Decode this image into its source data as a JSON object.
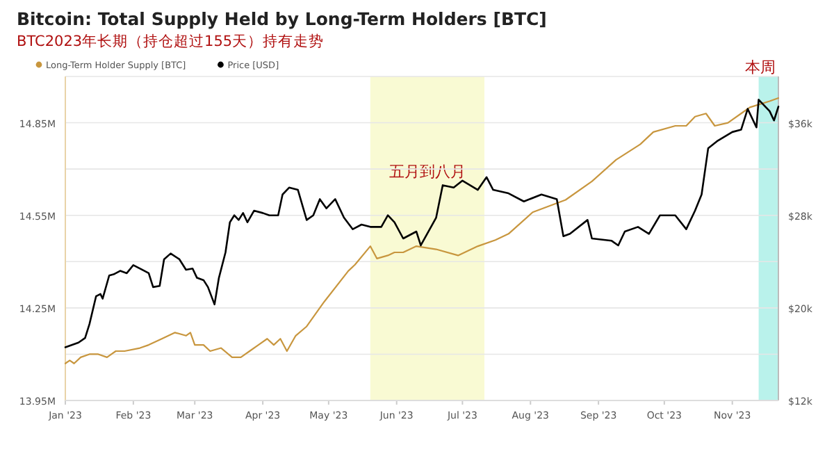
{
  "chart_data": {
    "type": "line",
    "title": "Bitcoin: Total Supply Held by Long-Term Holders [BTC]",
    "subtitle": "BTC2023年长期（持仓超过155天）持有走势",
    "legend": "top left",
    "grid": "y",
    "marker": "none",
    "line_style": "solid",
    "xlim": [
      "2023-01-01",
      "2023-11-22"
    ],
    "xticks": [
      {
        "value": "2023-01-01",
        "label": "Jan '23"
      },
      {
        "value": "2023-02-01",
        "label": "Feb '23"
      },
      {
        "value": "2023-03-01",
        "label": "Mar '23"
      },
      {
        "value": "2023-04-01",
        "label": "Apr '23"
      },
      {
        "value": "2023-05-01",
        "label": "May '23"
      },
      {
        "value": "2023-06-01",
        "label": "Jun '23"
      },
      {
        "value": "2023-07-01",
        "label": "Jul '23"
      },
      {
        "value": "2023-08-01",
        "label": "Aug '23"
      },
      {
        "value": "2023-09-01",
        "label": "Sep '23"
      },
      {
        "value": "2023-10-01",
        "label": "Oct '23"
      },
      {
        "value": "2023-11-01",
        "label": "Nov '23"
      }
    ],
    "ylim": [
      13.95,
      15.0
    ],
    "yticks": [
      {
        "value": 13.95,
        "label": "13.95M"
      },
      {
        "value": 14.1,
        "label": null
      },
      {
        "value": 14.25,
        "label": "14.25M"
      },
      {
        "value": 14.4,
        "label": null
      },
      {
        "value": 14.55,
        "label": "14.55M"
      },
      {
        "value": 14.7,
        "label": null
      },
      {
        "value": 14.85,
        "label": "14.85M"
      },
      {
        "value": 15.0,
        "label": null
      }
    ],
    "y2lim": [
      12,
      40
    ],
    "y2ticks": [
      {
        "value": 12,
        "label": "$12k"
      },
      {
        "value": 20,
        "label": "$20k"
      },
      {
        "value": 28,
        "label": "$28k"
      },
      {
        "value": 36,
        "label": "$36k"
      }
    ],
    "bands": [
      {
        "axis": "x",
        "from": "2023-05-20",
        "to": "2023-07-11",
        "label": "五月到八月",
        "color": "#f7f9c8"
      },
      {
        "axis": "x",
        "from": "2023-11-13",
        "to": "2023-11-22",
        "label": "本周",
        "color": "#a8efe6"
      }
    ],
    "series": [
      {
        "name": "Long-Term Holder Supply [BTC]",
        "color": "#c8963e",
        "x": [
          "2023-01-01",
          "2023-01-03",
          "2023-01-05",
          "2023-01-08",
          "2023-01-12",
          "2023-01-16",
          "2023-01-20",
          "2023-01-24",
          "2023-01-28",
          "2023-02-04",
          "2023-02-08",
          "2023-02-14",
          "2023-02-20",
          "2023-02-25",
          "2023-02-27",
          "2023-03-01",
          "2023-03-05",
          "2023-03-08",
          "2023-03-13",
          "2023-03-18",
          "2023-03-22",
          "2023-03-26",
          "2023-03-30",
          "2023-04-03",
          "2023-04-06",
          "2023-04-09",
          "2023-04-12",
          "2023-04-16",
          "2023-04-21",
          "2023-04-29",
          "2023-05-10",
          "2023-05-13",
          "2023-05-20",
          "2023-05-23",
          "2023-05-28",
          "2023-05-31",
          "2023-06-04",
          "2023-06-10",
          "2023-06-19",
          "2023-06-29",
          "2023-07-08",
          "2023-07-16",
          "2023-07-22",
          "2023-08-02",
          "2023-08-17",
          "2023-08-29",
          "2023-09-09",
          "2023-09-20",
          "2023-09-26",
          "2023-10-06",
          "2023-10-11",
          "2023-10-15",
          "2023-10-20",
          "2023-10-24",
          "2023-10-30",
          "2023-11-05",
          "2023-11-09",
          "2023-11-18",
          "2023-11-22"
        ],
        "values": [
          14.07,
          14.08,
          14.07,
          14.09,
          14.1,
          14.1,
          14.09,
          14.11,
          14.11,
          14.12,
          14.13,
          14.15,
          14.17,
          14.16,
          14.17,
          14.13,
          14.13,
          14.11,
          14.12,
          14.09,
          14.09,
          14.11,
          14.13,
          14.15,
          14.13,
          14.15,
          14.11,
          14.16,
          14.19,
          14.27,
          14.37,
          14.39,
          14.45,
          14.41,
          14.42,
          14.43,
          14.43,
          14.45,
          14.44,
          14.42,
          14.45,
          14.47,
          14.49,
          14.56,
          14.6,
          14.66,
          14.73,
          14.78,
          14.82,
          14.84,
          14.84,
          14.87,
          14.88,
          14.84,
          14.85,
          14.88,
          14.9,
          14.92,
          14.93
        ]
      },
      {
        "name": "Price [USD]",
        "color": "#000000",
        "axis": "y2",
        "x": [
          "2023-01-01",
          "2023-01-07",
          "2023-01-10",
          "2023-01-12",
          "2023-01-15",
          "2023-01-17",
          "2023-01-18",
          "2023-01-21",
          "2023-01-23",
          "2023-01-26",
          "2023-01-29",
          "2023-02-01",
          "2023-02-05",
          "2023-02-08",
          "2023-02-10",
          "2023-02-13",
          "2023-02-15",
          "2023-02-18",
          "2023-02-22",
          "2023-02-25",
          "2023-02-28",
          "2023-03-02",
          "2023-03-05",
          "2023-03-07",
          "2023-03-10",
          "2023-03-12",
          "2023-03-15",
          "2023-03-17",
          "2023-03-19",
          "2023-03-21",
          "2023-03-23",
          "2023-03-25",
          "2023-03-28",
          "2023-04-01",
          "2023-04-04",
          "2023-04-08",
          "2023-04-10",
          "2023-04-13",
          "2023-04-17",
          "2023-04-21",
          "2023-04-24",
          "2023-04-27",
          "2023-04-30",
          "2023-05-04",
          "2023-05-08",
          "2023-05-12",
          "2023-05-16",
          "2023-05-20",
          "2023-05-25",
          "2023-05-28",
          "2023-05-31",
          "2023-06-04",
          "2023-06-10",
          "2023-06-12",
          "2023-06-19",
          "2023-06-22",
          "2023-06-27",
          "2023-07-01",
          "2023-07-08",
          "2023-07-12",
          "2023-07-15",
          "2023-07-22",
          "2023-07-29",
          "2023-08-06",
          "2023-08-13",
          "2023-08-16",
          "2023-08-19",
          "2023-08-27",
          "2023-08-29",
          "2023-09-07",
          "2023-09-10",
          "2023-09-13",
          "2023-09-19",
          "2023-09-24",
          "2023-09-29",
          "2023-10-06",
          "2023-10-11",
          "2023-10-15",
          "2023-10-18",
          "2023-10-21",
          "2023-10-25",
          "2023-11-01",
          "2023-11-05",
          "2023-11-08",
          "2023-11-12",
          "2023-11-13",
          "2023-11-18",
          "2023-11-20",
          "2023-11-22"
        ],
        "values": [
          16.6,
          17.0,
          17.4,
          18.6,
          21.0,
          21.2,
          20.8,
          22.8,
          22.9,
          23.2,
          23.0,
          23.7,
          23.3,
          23.0,
          21.8,
          21.9,
          24.2,
          24.7,
          24.2,
          23.3,
          23.4,
          22.6,
          22.4,
          21.8,
          20.3,
          22.6,
          24.8,
          27.4,
          28.0,
          27.6,
          28.2,
          27.4,
          28.4,
          28.2,
          28.0,
          28.0,
          29.8,
          30.4,
          30.2,
          27.6,
          28.0,
          29.4,
          28.6,
          29.4,
          27.8,
          26.8,
          27.2,
          27.0,
          27.0,
          28.0,
          27.4,
          26.0,
          26.6,
          25.4,
          27.8,
          30.6,
          30.4,
          31.0,
          30.2,
          31.3,
          30.2,
          29.9,
          29.2,
          29.8,
          29.4,
          26.2,
          26.4,
          27.6,
          26.0,
          25.8,
          25.4,
          26.6,
          27.0,
          26.4,
          28.0,
          28.0,
          26.8,
          28.4,
          29.8,
          33.8,
          34.4,
          35.2,
          35.4,
          37.2,
          35.6,
          38.0,
          37.0,
          36.2,
          37.4
        ]
      }
    ]
  }
}
